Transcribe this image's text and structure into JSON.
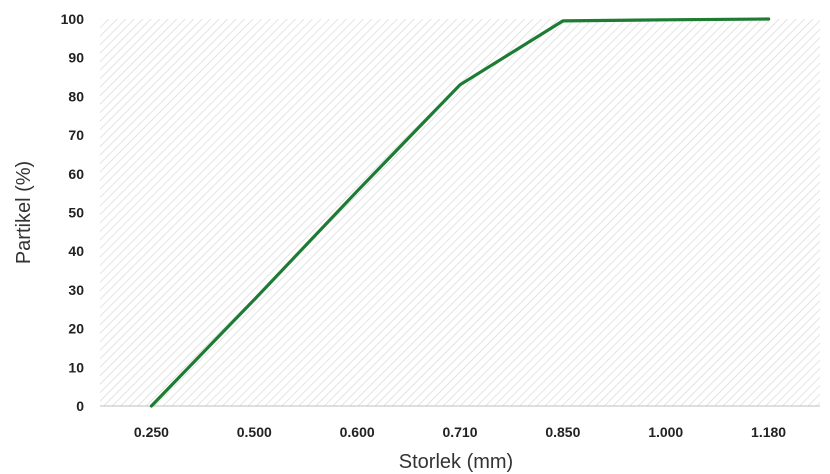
{
  "chart_data": {
    "type": "line",
    "categories": [
      "0.250",
      "0.500",
      "0.600",
      "0.710",
      "0.850",
      "1.000",
      "1.180"
    ],
    "series": [
      {
        "values": [
          0,
          27.5,
          55.5,
          83,
          99.5,
          99.8,
          100
        ]
      }
    ],
    "yticks": [
      "0",
      "10",
      "20",
      "30",
      "40",
      "50",
      "60",
      "70",
      "80",
      "90",
      "100"
    ],
    "ylim": [
      0,
      100
    ],
    "xlabel": "Storlek (mm)",
    "ylabel": "Partikel (%)",
    "grid": false,
    "background": "diagonal hatch",
    "colors": {
      "line": "#1e7b34",
      "hatch": "#d9d9d9",
      "axis": "#bfbfbf"
    }
  }
}
